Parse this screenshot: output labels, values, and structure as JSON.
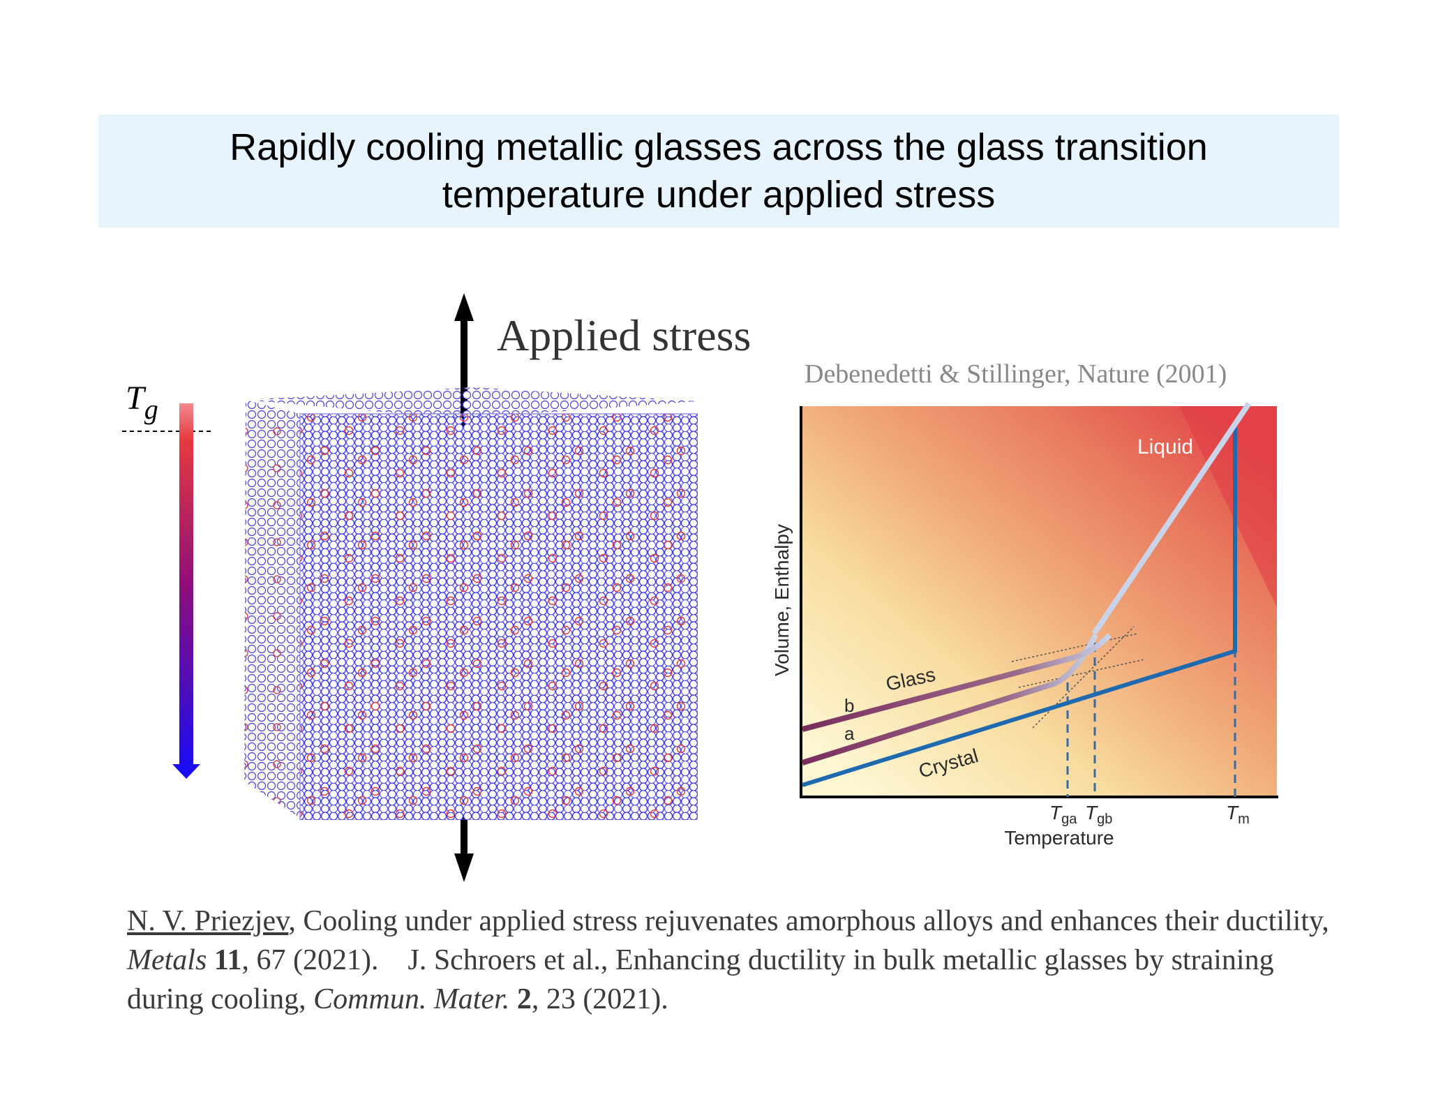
{
  "title": {
    "line1": "Rapidly cooling metallic glasses across the glass transition",
    "line2": "temperature under applied stress"
  },
  "stress": {
    "label": "Applied stress"
  },
  "tg": {
    "symbol": "T",
    "subscript": "g"
  },
  "source": {
    "text": "Debenedetti & Stillinger, Nature (2001)"
  },
  "diagram": {
    "y_axis_label": "Volume, Enthalpy",
    "x_axis_label": "Temperature",
    "liquid_label": "Liquid",
    "glass_label": "Glass",
    "crystal_label": "Crystal",
    "curve_b_label": "b",
    "curve_a_label": "a",
    "tga_main": "T",
    "tga_sub": "ga",
    "tgb_main": "T",
    "tgb_sub": "gb",
    "tm_main": "T",
    "tm_sub": "m",
    "colors": {
      "liquid_line": "#c9d4ea",
      "glass_line": "#7a3a64",
      "crystal_line": "#1f6aae",
      "background_hot": "#e24a4a",
      "background_cold": "#fdf6d2"
    }
  },
  "simulation": {
    "colors": {
      "atom_type_a": "#3a35e8",
      "atom_type_b": "#e03a3a"
    }
  },
  "cooling_arrow": {
    "colors": {
      "hot": "#e8393f",
      "cold": "#1b0cf2"
    }
  },
  "citation": {
    "author": "N. V. Priezjev",
    "part1": ", Cooling under applied stress rejuvenates amorphous alloys and enhances their ductility, ",
    "journal1": "Metals",
    "space1": " ",
    "volume1": "11",
    "part2": ", 67 (2021).    J. Schroers et al., Enhancing ductility in bulk metallic glasses by straining during cooling, ",
    "journal2": "Commun. Mater.",
    "space2": " ",
    "volume2": "2",
    "part3": ", 23 (2021)."
  }
}
